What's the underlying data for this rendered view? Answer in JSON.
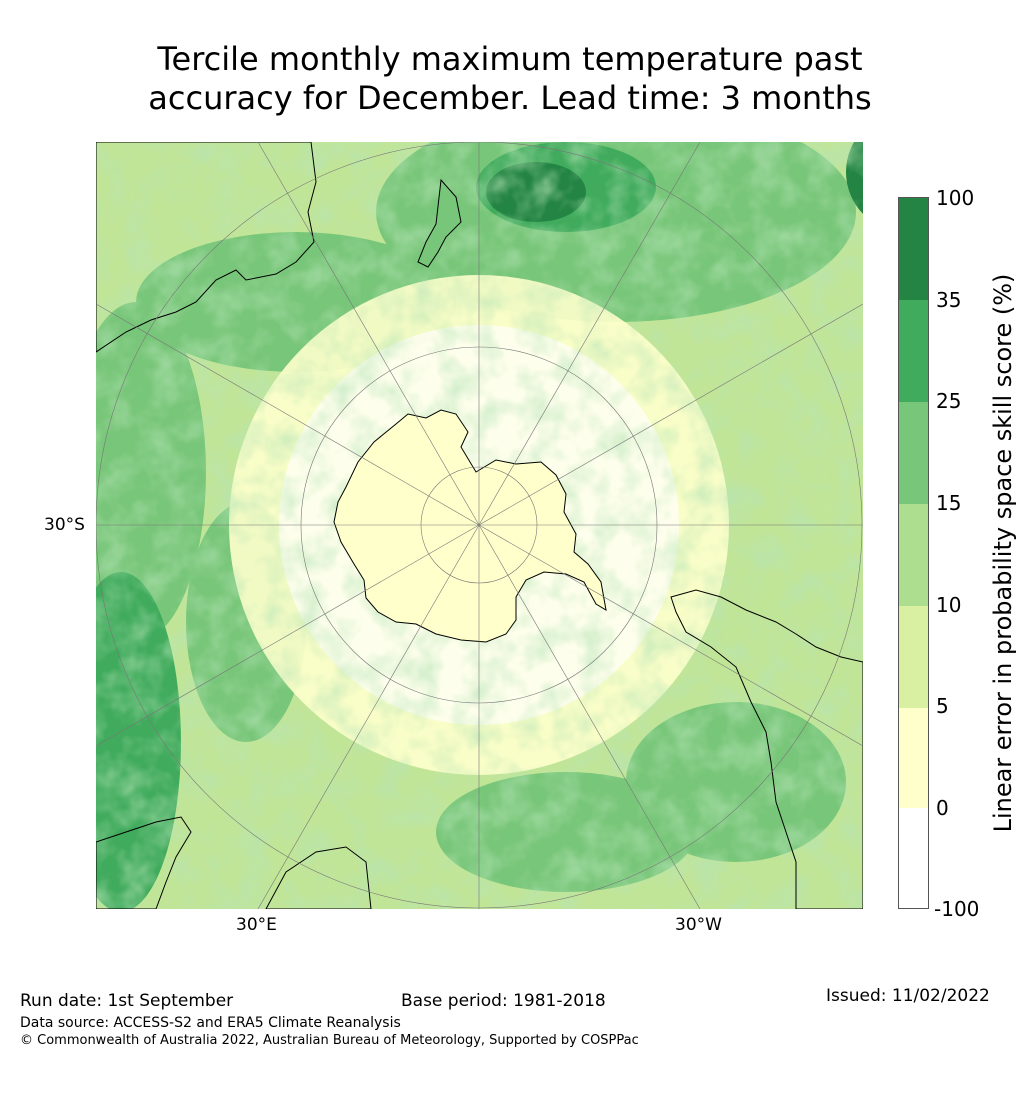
{
  "title_line1": "Tercile monthly maximum temperature past",
  "title_line2": "accuracy for December. Lead time: 3 months",
  "map": {
    "lat_label": "30°S",
    "lon_labels": [
      "30°E",
      "30°W"
    ],
    "projection": "south-polar-stereographic"
  },
  "colorbar": {
    "label": "Linear error in probability space skill score (%)",
    "ticks": [
      "100",
      "35",
      "25",
      "15",
      "10",
      "5",
      "0",
      "-100"
    ],
    "colors": [
      "#238443",
      "#41ab5d",
      "#78c679",
      "#addd8e",
      "#d9f0a3",
      "#ffffcc",
      "#ffffff"
    ],
    "bins": [
      {
        "range": "35 to 100",
        "color": "#238443"
      },
      {
        "range": "25 to 35",
        "color": "#41ab5d"
      },
      {
        "range": "15 to 25",
        "color": "#78c679"
      },
      {
        "range": "10 to 15",
        "color": "#addd8e"
      },
      {
        "range": "5 to 10",
        "color": "#d9f0a3"
      },
      {
        "range": "0 to 5",
        "color": "#ffffcc"
      },
      {
        "range": "-100 to 0",
        "color": "#ffffff"
      }
    ]
  },
  "footer": {
    "run_date": "Run date: 1st September",
    "base_period": "Base period: 1981-2018",
    "issued": "Issued: 11/02/2022",
    "data_source": "Data source: ACCESS-S2 and ERA5 Climate Reanalysis",
    "copyright": "© Commonwealth of Australia 2022, Australian Bureau of Meteorology, Supported by COSPPac"
  }
}
